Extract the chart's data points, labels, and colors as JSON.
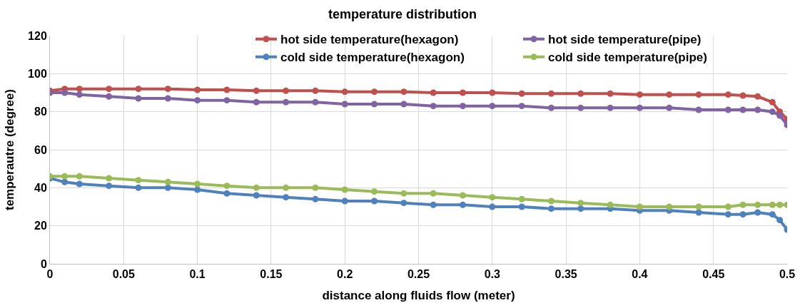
{
  "chart_data": {
    "type": "line",
    "title": "temperature distribution",
    "xlabel": "distance along fluids flow (meter)",
    "ylabel": "temperautre (degree)",
    "x": [
      0,
      0.01,
      0.02,
      0.04,
      0.06,
      0.08,
      0.1,
      0.12,
      0.14,
      0.16,
      0.18,
      0.2,
      0.22,
      0.24,
      0.26,
      0.28,
      0.3,
      0.32,
      0.34,
      0.36,
      0.38,
      0.4,
      0.42,
      0.44,
      0.46,
      0.47,
      0.48,
      0.49,
      0.495,
      0.5
    ],
    "series": [
      {
        "name": "hot side temperature(hexagon)",
        "color": "#c0504d",
        "values": [
          91,
          92,
          92,
          92,
          92,
          92,
          91.5,
          91.5,
          91,
          91,
          91,
          90.5,
          90.5,
          90.5,
          90,
          90,
          90,
          89.5,
          89.5,
          89.5,
          89.5,
          89,
          89,
          89,
          89,
          88.5,
          88,
          85,
          80,
          76
        ]
      },
      {
        "name": "hot side temperature(pipe)",
        "color": "#8064a2",
        "values": [
          90,
          90,
          89,
          88,
          87,
          87,
          86,
          86,
          85,
          85,
          85,
          84,
          84,
          84,
          83,
          83,
          83,
          83,
          82,
          82,
          82,
          82,
          82,
          81,
          81,
          81,
          81,
          80,
          78,
          73
        ]
      },
      {
        "name": "cold side temperature(hexagon)",
        "color": "#4f81bd",
        "values": [
          45,
          43,
          42,
          41,
          40,
          40,
          39,
          37,
          36,
          35,
          34,
          33,
          33,
          32,
          31,
          31,
          30,
          30,
          29,
          29,
          29,
          28,
          28,
          27,
          26,
          26,
          27,
          26,
          23,
          18
        ]
      },
      {
        "name": "cold side temperature(pipe)",
        "color": "#9bbb59",
        "values": [
          46,
          46,
          46,
          45,
          44,
          43,
          42,
          41,
          40,
          40,
          40,
          39,
          38,
          37,
          37,
          36,
          35,
          34,
          33,
          32,
          31,
          30,
          30,
          30,
          30,
          31,
          31,
          31,
          31,
          31
        ]
      }
    ],
    "xlim": [
      0,
      0.5
    ],
    "xticks": [
      0,
      0.05,
      0.1,
      0.15,
      0.2,
      0.25,
      0.3,
      0.35,
      0.4,
      0.45,
      0.5
    ],
    "ylim": [
      0,
      120
    ],
    "yticks": [
      0,
      20,
      40,
      60,
      80,
      100,
      120
    ],
    "grid": true,
    "legend": "top right",
    "marker": "circle",
    "line_style": "solid"
  }
}
